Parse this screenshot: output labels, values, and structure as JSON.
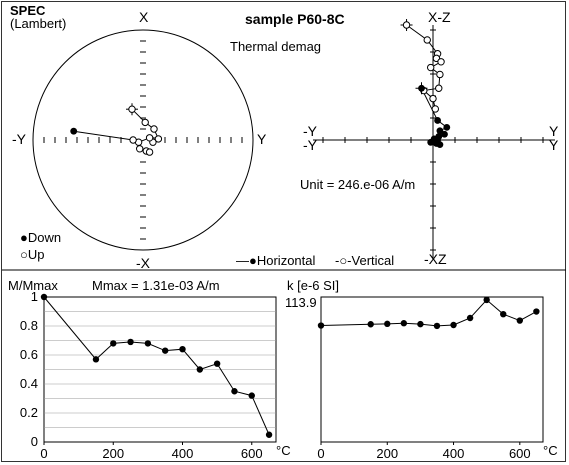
{
  "header": {
    "spec_title": "SPEC",
    "projection": "(Lambert)",
    "sample_title": "sample P60-8C",
    "demag_type": "Thermal demag"
  },
  "stereonet": {
    "axis_top": "X",
    "axis_bottom": "-X",
    "axis_left": "-Y",
    "axis_right": "Y",
    "legend_down": "Down",
    "legend_up": "Up",
    "down_points": [
      [
        -0.63,
        0.08
      ]
    ],
    "up_points": [
      [
        -0.1,
        0.28
      ],
      [
        0.02,
        0.16
      ],
      [
        0.1,
        0.1
      ],
      [
        0.14,
        0.01
      ],
      [
        0.09,
        -0.02
      ],
      [
        0.06,
        0.02
      ],
      [
        -0.04,
        -0.02
      ],
      [
        -0.09,
        0.0
      ],
      [
        -0.03,
        -0.08
      ],
      [
        0.03,
        -0.1
      ],
      [
        0.06,
        -0.11
      ]
    ]
  },
  "zijderveld": {
    "label_top": "X-Z",
    "label_bottom": "-XZ",
    "label_left_top": "-Y",
    "label_left_bottom": "-Y",
    "label_right_top": "Y",
    "label_right_bottom": "Y",
    "unit_text": "Unit = 246.e-06 A/m",
    "legend_horizontal": "Horizontal",
    "legend_vertical": "Vertical",
    "horizontal_points": [
      [
        -0.1,
        0.45
      ],
      [
        0.04,
        0.17
      ],
      [
        0.12,
        0.11
      ],
      [
        0.06,
        0.08
      ],
      [
        0.1,
        0.05
      ],
      [
        0.05,
        0.03
      ],
      [
        0.04,
        0.0
      ],
      [
        0.01,
        0.01
      ],
      [
        -0.02,
        -0.02
      ],
      [
        0.03,
        -0.03
      ],
      [
        0.06,
        -0.04
      ]
    ],
    "vertical_points": [
      [
        -0.23,
        1.0
      ],
      [
        -0.05,
        0.87
      ],
      [
        0.04,
        0.75
      ],
      [
        0.03,
        0.71
      ],
      [
        0.07,
        0.68
      ],
      [
        -0.02,
        0.63
      ],
      [
        0.06,
        0.57
      ],
      [
        0.05,
        0.45
      ],
      [
        -0.08,
        0.43
      ],
      [
        0.0,
        0.36
      ],
      [
        0.02,
        0.27
      ]
    ]
  },
  "chart_data": [
    {
      "type": "line",
      "title": "Mmax = 1.31e-03 A/m",
      "ylabel": "M/Mmax",
      "xlabel": "°C",
      "x": [
        0,
        150,
        200,
        250,
        300,
        350,
        400,
        450,
        500,
        550,
        600,
        650
      ],
      "values": [
        1.0,
        0.57,
        0.68,
        0.69,
        0.68,
        0.63,
        0.64,
        0.5,
        0.54,
        0.35,
        0.32,
        0.05
      ],
      "xlim": [
        0,
        670
      ],
      "ylim": [
        0,
        1.0
      ],
      "xticks": [
        "0",
        "200",
        "400",
        "600"
      ],
      "yticks": [
        "0",
        "0.2",
        "0.4",
        "0.6",
        "0.8",
        "1"
      ],
      "grid": "horizontal"
    },
    {
      "type": "line",
      "title": "k [e-6 SI]",
      "ymax_label": "113.9",
      "xlabel": "°C",
      "x": [
        0,
        150,
        200,
        250,
        300,
        350,
        400,
        450,
        500,
        550,
        600,
        650
      ],
      "values": [
        91.5,
        92.5,
        92.8,
        93.3,
        92.6,
        91.2,
        91.9,
        97.4,
        111.6,
        100.4,
        95.4,
        102.5
      ],
      "xlim": [
        0,
        670
      ],
      "ylim": [
        0,
        113.9
      ],
      "xticks": [
        "0",
        "200",
        "400",
        "600"
      ]
    }
  ],
  "footer": {
    "unit_c": "°C"
  }
}
